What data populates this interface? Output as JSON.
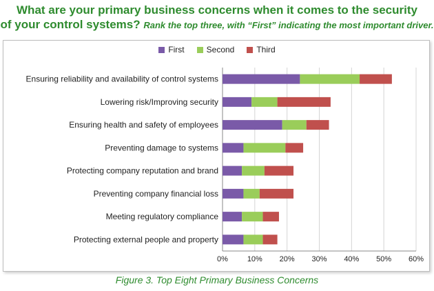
{
  "title": {
    "line1": "What are your primary business concerns when it comes to the security",
    "line2_main": "of your control systems?",
    "line2_sub": "Rank the top three, with “First” indicating the most important driver."
  },
  "caption": "Figure 3. Top Eight Primary Business Concerns",
  "chart_data": {
    "type": "bar",
    "orientation": "horizontal",
    "stacked": true,
    "categories": [
      "Ensuring reliability and availability of control systems",
      "Lowering risk/Improving security",
      "Ensuring health and safety of employees",
      "Preventing damage to systems",
      "Protecting company reputation and brand",
      "Preventing company financial loss",
      "Meeting regulatory compliance",
      "Protecting external people and property"
    ],
    "series": [
      {
        "name": "First",
        "color": "#7a5aa8",
        "values": [
          24,
          9,
          18.5,
          6.5,
          6,
          6.5,
          6,
          6.5
        ]
      },
      {
        "name": "Second",
        "color": "#9acd5a",
        "values": [
          18.5,
          8,
          7.5,
          13,
          7,
          5,
          6.5,
          6
        ]
      },
      {
        "name": "Third",
        "color": "#c0504d",
        "values": [
          10,
          16.5,
          7,
          5.5,
          9,
          10.5,
          5,
          4.5
        ]
      }
    ],
    "xlim": [
      0,
      60
    ],
    "xticks": [
      "0%",
      "10%",
      "20%",
      "30%",
      "40%",
      "50%",
      "60%"
    ],
    "grid": true,
    "legend": "top-center"
  }
}
